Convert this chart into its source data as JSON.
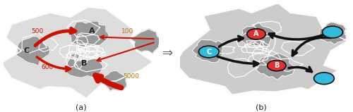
{
  "fig_width": 5.0,
  "fig_height": 1.59,
  "dpi": 100,
  "bg_color": "#ffffff",
  "label_a": "(a)",
  "label_b": "(b)",
  "arrow_color_left": "#cc1100",
  "arrow_color_right": "#111111",
  "node_color_red": "#e03030",
  "node_color_cyan": "#33bbdd",
  "map_bg_left": "#dddddd",
  "map_bg_right": "#cccccc",
  "region_color_dark": "#999999",
  "flow_labels": {
    "CA": "500",
    "AC": "100",
    "CB": "600",
    "BC_in": "5000"
  },
  "font_size_label": 8,
  "font_size_node": 7,
  "font_size_flow": 6.5
}
